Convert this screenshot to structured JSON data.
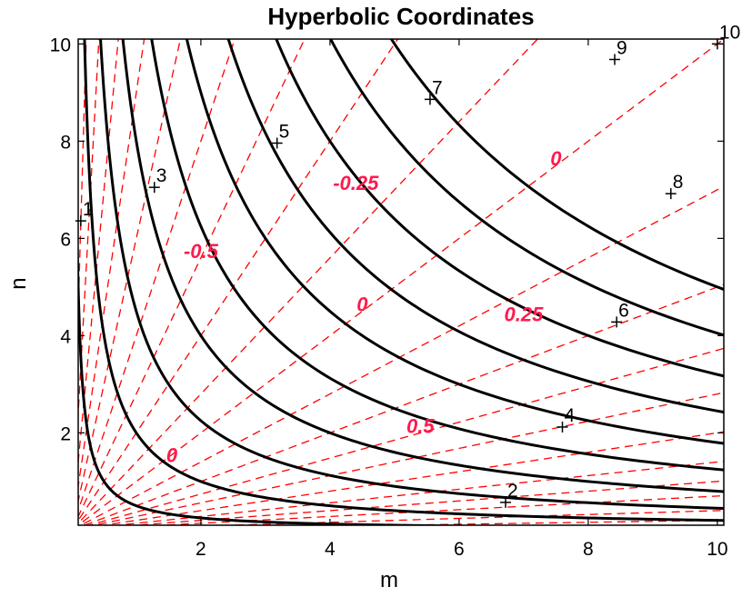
{
  "chart_data": {
    "type": "line",
    "title": "Hyperbolic Coordinates",
    "xlabel": "m",
    "ylabel": "n",
    "xlim": [
      0.1,
      10.1
    ],
    "ylim": [
      0.1,
      10.1
    ],
    "xticks": [
      "2",
      "4",
      "6",
      "8",
      "10"
    ],
    "yticks": [
      "2",
      "4",
      "6",
      "8",
      "10"
    ],
    "grid": false,
    "colors": {
      "hyperbola": "#000000",
      "ray": "#ff0000",
      "ray_label": "#ff1a4d"
    },
    "hyperbolas": [
      {
        "label": "1",
        "u": 1
      },
      {
        "label": "2",
        "u": 2
      },
      {
        "label": "3",
        "u": 3
      },
      {
        "label": "4",
        "u": 4
      },
      {
        "label": "5",
        "u": 5
      },
      {
        "label": "6",
        "u": 6
      },
      {
        "label": "7",
        "u": 7
      },
      {
        "label": "8",
        "u": 8
      },
      {
        "label": "9",
        "u": 9
      },
      {
        "label": "10",
        "u": 10
      }
    ],
    "hyperbola_relation": "m*n = u^2 / 2",
    "contour_label_points": [
      {
        "label": "1",
        "m": 0.14,
        "n": 6.36
      },
      {
        "label": "2",
        "m": 6.72,
        "n": 0.57
      },
      {
        "label": "3",
        "m": 1.28,
        "n": 7.05
      },
      {
        "label": "4",
        "m": 7.6,
        "n": 2.12
      },
      {
        "label": "5",
        "m": 3.18,
        "n": 7.96
      },
      {
        "label": "6",
        "m": 8.44,
        "n": 4.28
      },
      {
        "label": "7",
        "m": 5.55,
        "n": 8.86
      },
      {
        "label": "8",
        "m": 9.28,
        "n": 6.92
      },
      {
        "label": "9",
        "m": 8.41,
        "n": 9.68
      },
      {
        "label": "10",
        "m": 10.0,
        "n": 10.0
      }
    ],
    "ray_slopes_n_over_m": [
      0.02,
      0.04,
      0.07,
      0.1,
      0.14,
      0.2,
      0.28,
      0.37,
      0.5,
      0.7,
      1.0,
      1.4,
      2.0,
      2.8,
      4.0,
      6.0,
      9.0,
      14.0,
      24.0,
      45.0
    ],
    "ray_labels": [
      {
        "text": "0",
        "m": 1.55,
        "n": 1.4
      },
      {
        "text": "-0.5",
        "m": 2.0,
        "n": 5.6
      },
      {
        "text": "0",
        "m": 4.5,
        "n": 4.5
      },
      {
        "text": "-0.25",
        "m": 4.4,
        "n": 7.0
      },
      {
        "text": "0.5",
        "m": 5.4,
        "n": 2.0
      },
      {
        "text": "0.25",
        "m": 7.0,
        "n": 4.3
      },
      {
        "text": "0",
        "m": 7.5,
        "n": 7.5
      }
    ]
  }
}
